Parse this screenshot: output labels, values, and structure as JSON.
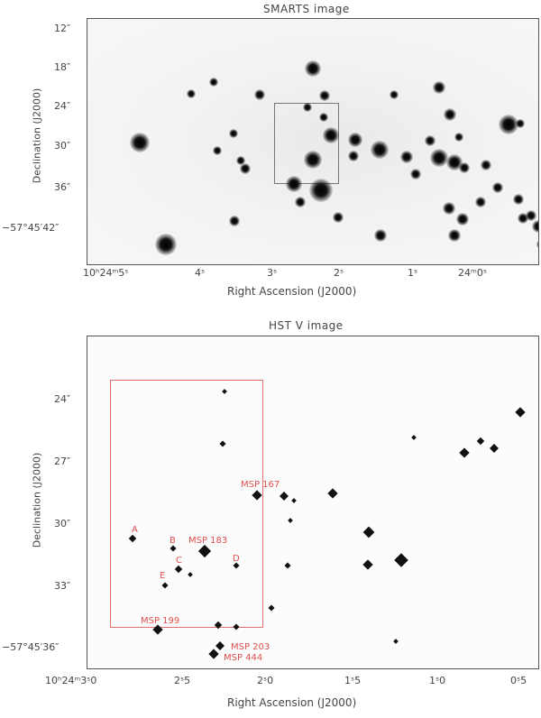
{
  "top": {
    "title": "SMARTS image",
    "y_ticks": [
      "12″",
      "18″",
      "24″",
      "30″",
      "36″",
      "−57°45′42″"
    ],
    "x_ticks": [
      "10ʰ24ᵐ5ˢ",
      "4ˢ",
      "3ˢ",
      "2ˢ",
      "1ˢ",
      "24ᵐ0ˢ"
    ],
    "xlabel": "Right Ascension (J2000)",
    "ylabel": "Declination (J2000)"
  },
  "bottom": {
    "title": "HST V image",
    "y_ticks": [
      "24″",
      "27″",
      "30″",
      "33″",
      "−57°45′36″"
    ],
    "x_ticks": [
      "10ʰ24ᵐ3ˢ0",
      "2ˢ5",
      "2ˢ0",
      "1ˢ5",
      "1ˢ0",
      "0ˢ5"
    ],
    "xlabel": "Right Ascension (J2000)",
    "ylabel": "Declination (J2000)",
    "labels": [
      "A",
      "B",
      "MSP 183",
      "C",
      "D",
      "E",
      "MSP 167",
      "MSP 199",
      "MSP 203",
      "MSP 444"
    ]
  }
}
